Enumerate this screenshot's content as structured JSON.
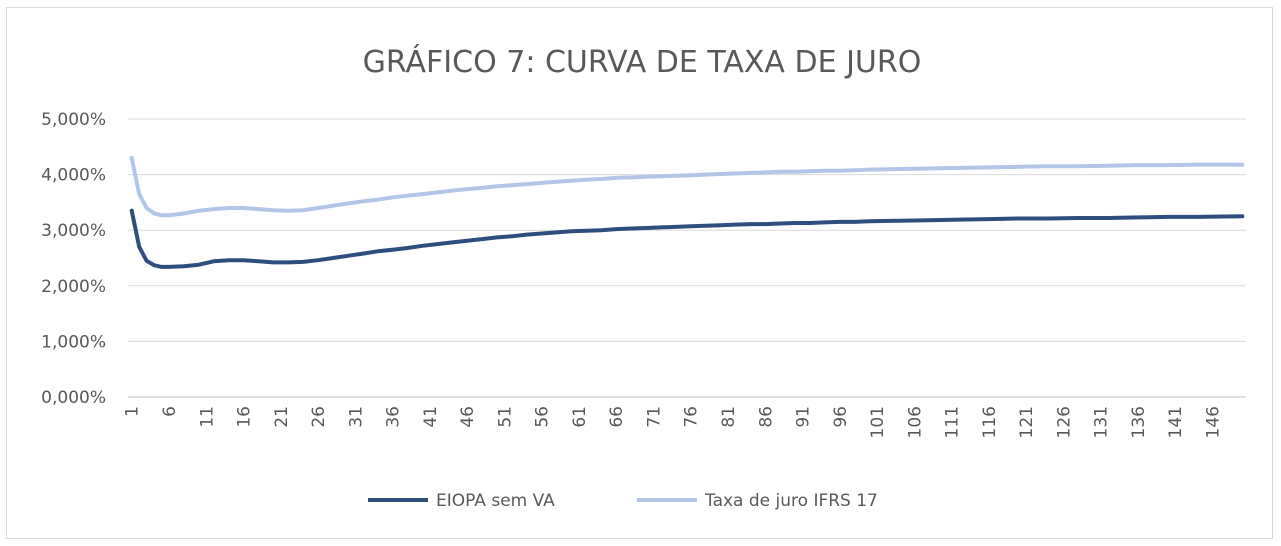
{
  "chart_data": {
    "type": "line",
    "title": "GRÁFICO 7: CURVA DE TAXA DE JURO",
    "xlabel": "",
    "ylabel": "",
    "ylim": [
      0,
      5
    ],
    "yticks": [
      0,
      1,
      2,
      3,
      4,
      5
    ],
    "ytick_labels": [
      "0,000%",
      "1,000%",
      "2,000%",
      "3,000%",
      "4,000%",
      "5,000%"
    ],
    "x_range": [
      1,
      150
    ],
    "xtick_labels": [
      "1",
      "6",
      "11",
      "16",
      "21",
      "26",
      "31",
      "36",
      "41",
      "46",
      "51",
      "56",
      "61",
      "66",
      "71",
      "76",
      "81",
      "86",
      "91",
      "96",
      "101",
      "106",
      "111",
      "116",
      "121",
      "126",
      "131",
      "136",
      "141",
      "146"
    ],
    "grid": "horizontal",
    "legend_position": "bottom",
    "series": [
      {
        "name": "EIOPA sem VA",
        "color": "#2e4e7e",
        "points": [
          [
            1,
            3.35
          ],
          [
            2,
            2.7
          ],
          [
            3,
            2.45
          ],
          [
            4,
            2.37
          ],
          [
            5,
            2.34
          ],
          [
            6,
            2.34
          ],
          [
            8,
            2.35
          ],
          [
            10,
            2.38
          ],
          [
            12,
            2.44
          ],
          [
            14,
            2.46
          ],
          [
            16,
            2.46
          ],
          [
            18,
            2.44
          ],
          [
            20,
            2.42
          ],
          [
            22,
            2.42
          ],
          [
            24,
            2.43
          ],
          [
            26,
            2.46
          ],
          [
            28,
            2.5
          ],
          [
            30,
            2.54
          ],
          [
            32,
            2.58
          ],
          [
            34,
            2.62
          ],
          [
            36,
            2.65
          ],
          [
            38,
            2.68
          ],
          [
            40,
            2.72
          ],
          [
            42,
            2.75
          ],
          [
            44,
            2.78
          ],
          [
            46,
            2.81
          ],
          [
            48,
            2.84
          ],
          [
            50,
            2.87
          ],
          [
            52,
            2.89
          ],
          [
            54,
            2.92
          ],
          [
            56,
            2.94
          ],
          [
            58,
            2.96
          ],
          [
            60,
            2.98
          ],
          [
            62,
            2.99
          ],
          [
            64,
            3.0
          ],
          [
            66,
            3.02
          ],
          [
            68,
            3.03
          ],
          [
            70,
            3.04
          ],
          [
            72,
            3.05
          ],
          [
            74,
            3.06
          ],
          [
            76,
            3.07
          ],
          [
            78,
            3.08
          ],
          [
            80,
            3.09
          ],
          [
            82,
            3.1
          ],
          [
            84,
            3.11
          ],
          [
            86,
            3.11
          ],
          [
            88,
            3.12
          ],
          [
            90,
            3.13
          ],
          [
            92,
            3.13
          ],
          [
            94,
            3.14
          ],
          [
            96,
            3.15
          ],
          [
            98,
            3.15
          ],
          [
            100,
            3.16
          ],
          [
            104,
            3.17
          ],
          [
            108,
            3.18
          ],
          [
            112,
            3.19
          ],
          [
            116,
            3.2
          ],
          [
            120,
            3.21
          ],
          [
            124,
            3.21
          ],
          [
            128,
            3.22
          ],
          [
            132,
            3.22
          ],
          [
            136,
            3.23
          ],
          [
            140,
            3.24
          ],
          [
            144,
            3.24
          ],
          [
            150,
            3.25
          ]
        ]
      },
      {
        "name": "Taxa de juro IFRS 17",
        "color": "#b4c6e7",
        "points": [
          [
            1,
            4.3
          ],
          [
            2,
            3.65
          ],
          [
            3,
            3.4
          ],
          [
            4,
            3.3
          ],
          [
            5,
            3.27
          ],
          [
            6,
            3.27
          ],
          [
            8,
            3.3
          ],
          [
            10,
            3.35
          ],
          [
            12,
            3.38
          ],
          [
            14,
            3.4
          ],
          [
            16,
            3.4
          ],
          [
            18,
            3.38
          ],
          [
            20,
            3.36
          ],
          [
            22,
            3.35
          ],
          [
            24,
            3.36
          ],
          [
            26,
            3.4
          ],
          [
            28,
            3.44
          ],
          [
            30,
            3.48
          ],
          [
            32,
            3.52
          ],
          [
            34,
            3.55
          ],
          [
            36,
            3.59
          ],
          [
            38,
            3.62
          ],
          [
            40,
            3.65
          ],
          [
            42,
            3.68
          ],
          [
            44,
            3.71
          ],
          [
            46,
            3.74
          ],
          [
            48,
            3.76
          ],
          [
            50,
            3.79
          ],
          [
            52,
            3.81
          ],
          [
            54,
            3.83
          ],
          [
            56,
            3.85
          ],
          [
            58,
            3.87
          ],
          [
            60,
            3.89
          ],
          [
            62,
            3.91
          ],
          [
            64,
            3.92
          ],
          [
            66,
            3.94
          ],
          [
            68,
            3.95
          ],
          [
            70,
            3.96
          ],
          [
            72,
            3.97
          ],
          [
            74,
            3.98
          ],
          [
            76,
            3.99
          ],
          [
            78,
            4.0
          ],
          [
            80,
            4.01
          ],
          [
            82,
            4.02
          ],
          [
            84,
            4.03
          ],
          [
            86,
            4.04
          ],
          [
            88,
            4.05
          ],
          [
            90,
            4.05
          ],
          [
            92,
            4.06
          ],
          [
            94,
            4.07
          ],
          [
            96,
            4.07
          ],
          [
            98,
            4.08
          ],
          [
            100,
            4.09
          ],
          [
            104,
            4.1
          ],
          [
            108,
            4.11
          ],
          [
            112,
            4.12
          ],
          [
            116,
            4.13
          ],
          [
            120,
            4.14
          ],
          [
            124,
            4.15
          ],
          [
            128,
            4.15
          ],
          [
            132,
            4.16
          ],
          [
            136,
            4.17
          ],
          [
            140,
            4.17
          ],
          [
            144,
            4.18
          ],
          [
            150,
            4.18
          ]
        ]
      }
    ]
  }
}
